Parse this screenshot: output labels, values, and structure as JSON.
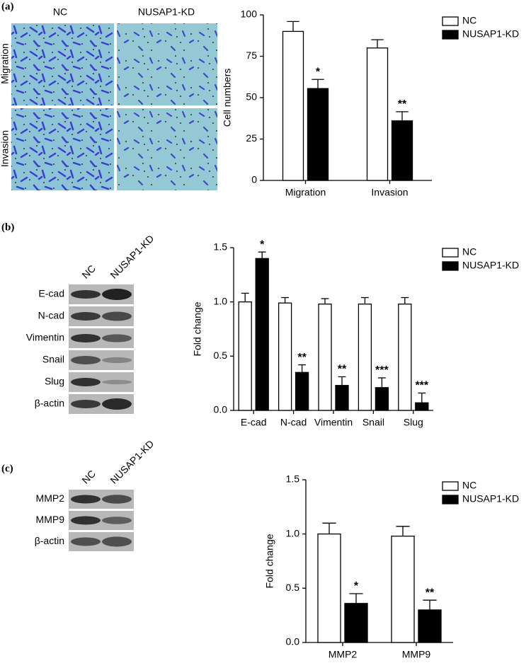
{
  "panels": [
    "(a)",
    "(b)",
    "(c)"
  ],
  "images": {
    "columns": [
      "NC",
      "NUSAP1-KD"
    ],
    "rows": [
      "Migration",
      "Invasion"
    ]
  },
  "blot_b": {
    "columns": [
      "NC",
      "NUSAP1-KD"
    ],
    "rows": [
      "E-cad",
      "N-cad",
      "Vimentin",
      "Snail",
      "Slug",
      "β-actin"
    ]
  },
  "blot_c": {
    "columns": [
      "NC",
      "NUSAP1-KD"
    ],
    "rows": [
      "MMP2",
      "MMP9",
      "β-actin"
    ]
  },
  "chart_data": [
    {
      "type": "bar",
      "y_label": "Cell numbers",
      "categories": [
        "Migration",
        "Invasion"
      ],
      "series": [
        {
          "name": "NC",
          "color": "#ffffff",
          "values": [
            90,
            80
          ],
          "errors": [
            6,
            5
          ],
          "annotations": [
            null,
            null
          ]
        },
        {
          "name": "NUSAP1-KD",
          "color": "#000000",
          "values": [
            55.5,
            36
          ],
          "errors": [
            5.5,
            5.5
          ],
          "annotations": [
            "*",
            "**"
          ]
        }
      ],
      "ylim": [
        0,
        100
      ],
      "yticks": [
        0,
        25,
        50,
        75,
        100
      ],
      "legend": "top-right"
    },
    {
      "type": "bar",
      "y_label": "Fold change",
      "categories": [
        "E-cad",
        "N-cad",
        "Vimentin",
        "Snail",
        "Slug"
      ],
      "series": [
        {
          "name": "NC",
          "color": "#ffffff",
          "values": [
            1.0,
            0.99,
            0.98,
            0.98,
            0.98
          ],
          "errors": [
            0.08,
            0.05,
            0.05,
            0.06,
            0.06
          ],
          "annotations": [
            null,
            null,
            null,
            null,
            null
          ]
        },
        {
          "name": "NUSAP1-KD",
          "color": "#000000",
          "values": [
            1.4,
            0.35,
            0.23,
            0.21,
            0.07
          ],
          "errors": [
            0.06,
            0.07,
            0.08,
            0.09,
            0.09
          ],
          "annotations": [
            "*",
            "**",
            "**",
            "***",
            "***"
          ]
        }
      ],
      "ylim": [
        0,
        1.5
      ],
      "yticks": [
        {
          "value": 0,
          "label": "0.0"
        },
        0.5,
        {
          "value": 1,
          "label": "1.0"
        },
        1.5
      ],
      "legend": "top-right"
    },
    {
      "type": "bar",
      "y_label": "Fold change",
      "categories": [
        "MMP2",
        "MMP9"
      ],
      "series": [
        {
          "name": "NC",
          "color": "#ffffff",
          "values": [
            1.0,
            0.98
          ],
          "errors": [
            0.1,
            0.09
          ],
          "annotations": [
            null,
            null
          ]
        },
        {
          "name": "NUSAP1-KD",
          "color": "#000000",
          "values": [
            0.36,
            0.3
          ],
          "errors": [
            0.09,
            0.09
          ],
          "annotations": [
            "*",
            "**"
          ]
        }
      ],
      "ylim": [
        0,
        1.5
      ],
      "yticks": [
        {
          "value": 0,
          "label": "0.0"
        },
        0.5,
        {
          "value": 1,
          "label": "1.0"
        },
        1.5
      ],
      "legend": "top-right"
    }
  ]
}
